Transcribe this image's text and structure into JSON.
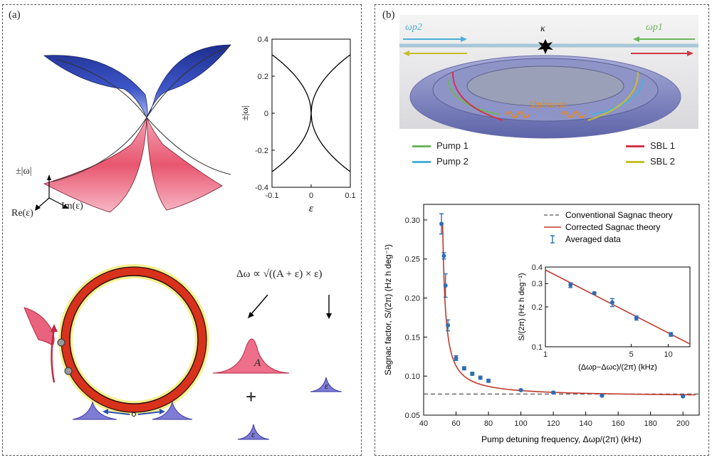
{
  "panel_a": {
    "label": "(a)",
    "surface_axes": {
      "vertical": "±|ω|",
      "re": "Re(ε)",
      "im": "Im(ε)"
    },
    "equation": "Δω ∝ √((A + ε) × ε)",
    "peak_labels": {
      "A": "A",
      "eps1": "ε",
      "eps2": "ε"
    },
    "plus": "+"
  },
  "panel_b": {
    "label": "(b)",
    "device": {
      "omega_p2": "ωp2",
      "omega_p1": "ωp1",
      "kappa": "κ",
      "phonon": "Ωphonon",
      "legend": [
        {
          "label": "Pump 1",
          "color": "#6ab85a"
        },
        {
          "label": "Pump 2",
          "color": "#4bb0d8"
        },
        {
          "label": "SBL 1",
          "color": "#d2344b"
        },
        {
          "label": "SBL 2",
          "color": "#c4c02a"
        }
      ]
    }
  },
  "chart_data": [
    {
      "type": "line",
      "title": "",
      "xlabel": "ε",
      "ylabel": "±|ω|",
      "xlim": [
        -0.1,
        0.1
      ],
      "ylim": [
        -0.4,
        0.4
      ],
      "x_ticks": [
        "-0.1",
        "0",
        "0.1"
      ],
      "y_ticks": [
        "0.4",
        "0.2",
        "0",
        "-0.2",
        "-0.4"
      ],
      "series": [
        {
          "x": [
            -0.1,
            -0.08,
            -0.06,
            -0.04,
            -0.02,
            -0.01,
            0
          ],
          "y": [
            0.316,
            0.283,
            0.245,
            0.2,
            0.141,
            0.1,
            0
          ]
        },
        {
          "x": [
            0,
            0.01,
            0.02,
            0.04,
            0.06,
            0.08,
            0.1
          ],
          "y": [
            0,
            0.1,
            0.141,
            0.2,
            0.245,
            0.283,
            0.316
          ]
        },
        {
          "x": [
            -0.1,
            -0.08,
            -0.06,
            -0.04,
            -0.02,
            -0.01,
            0
          ],
          "y": [
            -0.316,
            -0.283,
            -0.245,
            -0.2,
            -0.141,
            -0.1,
            0
          ]
        },
        {
          "x": [
            0,
            0.01,
            0.02,
            0.04,
            0.06,
            0.08,
            0.1
          ],
          "y": [
            0,
            -0.1,
            -0.141,
            -0.2,
            -0.245,
            -0.283,
            -0.316
          ]
        }
      ]
    },
    {
      "type": "scatter",
      "title": "",
      "xlabel": "Pump detuning frequency, Δωp/(2π) (kHz)",
      "ylabel": "Sagnac factor, S/(2π) (Hz h deg⁻¹)",
      "xlim": [
        40,
        210
      ],
      "ylim": [
        0.05,
        0.32
      ],
      "x_ticks": [
        "40",
        "60",
        "80",
        "100",
        "120",
        "140",
        "160",
        "180",
        "200"
      ],
      "y_ticks": [
        "0.30",
        "0.25",
        "0.20",
        "0.15",
        "0.10",
        "0.05"
      ],
      "legend": [
        {
          "label": "Conventional Sagnac theory",
          "style": "dashed",
          "color": "#555555"
        },
        {
          "label": "Corrected Sagnac theory",
          "style": "solid",
          "color": "#c0392b"
        },
        {
          "label": "Averaged data",
          "style": "errorbar",
          "color": "#2e6db4"
        }
      ],
      "conventional_level": 0.077,
      "data": [
        {
          "x": 51,
          "y": 0.295,
          "err": 0.013
        },
        {
          "x": 52.5,
          "y": 0.254,
          "err": 0.004
        },
        {
          "x": 53.5,
          "y": 0.216,
          "err": 0.015
        },
        {
          "x": 55,
          "y": 0.165,
          "err": 0.007
        },
        {
          "x": 60,
          "y": 0.123,
          "err": 0.003
        },
        {
          "x": 65,
          "y": 0.11,
          "err": 0.002
        },
        {
          "x": 70,
          "y": 0.103,
          "err": 0.002
        },
        {
          "x": 75,
          "y": 0.098,
          "err": 0.002
        },
        {
          "x": 80,
          "y": 0.094,
          "err": 0.002
        },
        {
          "x": 100,
          "y": 0.082,
          "err": 0.001
        },
        {
          "x": 120,
          "y": 0.079,
          "err": 0.001
        },
        {
          "x": 150,
          "y": 0.075,
          "err": 0.001
        },
        {
          "x": 200,
          "y": 0.074,
          "err": 0.001
        }
      ]
    },
    {
      "type": "scatter",
      "title": "",
      "xlabel": "(Δωp−Δωc)/(2π) (kHz)",
      "ylabel": "S/(2π) (Hz h deg⁻¹)",
      "log_x": true,
      "log_y": true,
      "xlim": [
        1,
        15
      ],
      "ylim": [
        0.1,
        0.4
      ],
      "x_ticks": [
        "1",
        "5",
        "10"
      ],
      "y_ticks": [
        "0.4",
        "0.3",
        "0.2",
        "0.1"
      ],
      "fit": {
        "x": [
          1,
          15
        ],
        "y": [
          0.38,
          0.105
        ]
      },
      "data": [
        {
          "x": 1.6,
          "y": 0.292,
          "err": 0.012
        },
        {
          "x": 2.5,
          "y": 0.254,
          "err": 0.005
        },
        {
          "x": 3.5,
          "y": 0.216,
          "err": 0.015
        },
        {
          "x": 5.5,
          "y": 0.165,
          "err": 0.006
        },
        {
          "x": 10.5,
          "y": 0.124,
          "err": 0.004
        }
      ]
    }
  ]
}
